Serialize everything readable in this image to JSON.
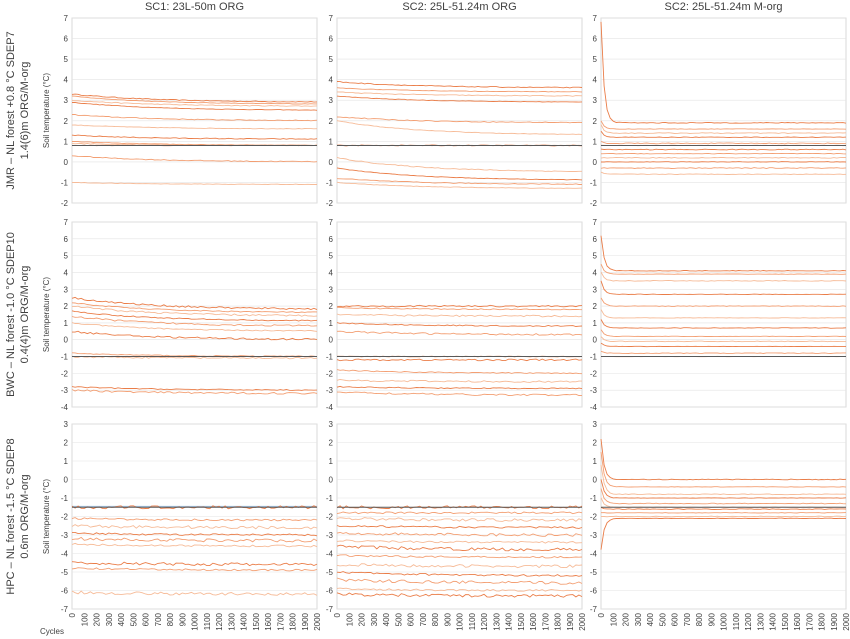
{
  "chart_data": {
    "type": "line",
    "column_titles": [
      "SC1: 23L-50m ORG",
      "SC2: 25L-51.24m ORG",
      "SC2: 25L-51.24m M-org"
    ],
    "x_axis": {
      "label": "Cycles",
      "ticks": [
        0,
        100,
        200,
        300,
        400,
        500,
        600,
        700,
        800,
        900,
        1000,
        1100,
        1200,
        1300,
        1400,
        1500,
        1600,
        1700,
        1800,
        1900,
        2000
      ],
      "range": [
        0,
        2000
      ]
    },
    "y_label": "Soil temperature (°C)",
    "grid": "horizontal",
    "colors": {
      "series": "#ec7c45",
      "reference": "#595959",
      "ice": "#9dc3e6",
      "grid": "#e3e3e3",
      "frame": "#d9d9d9"
    },
    "rows": [
      {
        "label": [
          "JMR – NL forest +0.8 °C SDEP7",
          "1.4(6)m ORG/M-org"
        ],
        "y_range": [
          -2,
          7
        ],
        "y_ticks": [
          -2,
          -1,
          0,
          1,
          2,
          3,
          4,
          5,
          6,
          7
        ],
        "reference": 0.8,
        "panels": [
          {
            "start": [
              3.3,
              3.2,
              3.0,
              2.9,
              2.3,
              1.8,
              1.3,
              1.0,
              0.9,
              0.8,
              0.3,
              -1.0
            ],
            "end": [
              2.9,
              2.8,
              2.7,
              2.5,
              2.0,
              1.6,
              1.1,
              0.8,
              0.8,
              0.8,
              0.0,
              -1.1
            ]
          },
          {
            "start": [
              3.9,
              3.6,
              3.4,
              3.2,
              2.2,
              2.0,
              0.8,
              0.8,
              0.2,
              -0.3,
              -0.8,
              -1.0
            ],
            "end": [
              3.6,
              3.4,
              3.2,
              2.9,
              1.9,
              1.3,
              0.8,
              0.8,
              -0.5,
              -0.9,
              -1.1,
              -1.3
            ]
          },
          {
            "start": [
              6.8,
              2.0,
              1.8,
              1.5,
              1.0,
              0.8,
              0.6,
              0.4,
              0.2,
              0.0,
              -0.3,
              -0.5
            ],
            "end": [
              1.9,
              1.6,
              1.4,
              1.2,
              0.9,
              0.8,
              0.6,
              0.4,
              0.2,
              0.0,
              -0.3,
              -0.6
            ]
          }
        ]
      },
      {
        "label": [
          "BWC – NL forest -1.0 °C SDEP10",
          "0.4(4)m ORG/M-org"
        ],
        "y_range": [
          -4,
          7
        ],
        "y_ticks": [
          -4,
          -3,
          -2,
          -1,
          0,
          1,
          2,
          3,
          4,
          5,
          6,
          7
        ],
        "reference": -1.0,
        "panels": [
          {
            "start": [
              2.5,
              2.2,
              2.0,
              1.7,
              1.4,
              1.0,
              0.5,
              -0.8,
              -1.0,
              -2.8,
              -3.0
            ],
            "end": [
              1.8,
              1.6,
              1.4,
              1.1,
              0.8,
              0.5,
              0.0,
              -1.0,
              -1.1,
              -3.0,
              -3.2
            ]
          },
          {
            "start": [
              2.0,
              1.9,
              1.5,
              1.0,
              0.5,
              -1.0,
              -1.2,
              -1.8,
              -2.4,
              -2.8,
              -3.1
            ],
            "end": [
              2.0,
              1.8,
              1.4,
              0.8,
              0.3,
              -1.0,
              -1.2,
              -2.0,
              -2.5,
              -2.9,
              -3.3
            ]
          },
          {
            "start": [
              6.2,
              4.5,
              4.0,
              3.5,
              2.5,
              1.8,
              1.2,
              0.6,
              0.2,
              -0.2,
              -0.7,
              -1.0
            ],
            "end": [
              4.1,
              3.9,
              3.5,
              2.7,
              2.0,
              1.3,
              0.7,
              0.2,
              -0.1,
              -0.4,
              -0.8,
              -1.0
            ]
          }
        ]
      },
      {
        "label": [
          "HPC – NL forest -1.5 °C SDEP8",
          "0.6m ORG/M-org"
        ],
        "y_range": [
          -7,
          3
        ],
        "y_ticks": [
          -7,
          -6,
          -5,
          -4,
          -3,
          -2,
          -1,
          0,
          1,
          2,
          3
        ],
        "reference": -1.5,
        "panels": [
          {
            "start": [
              -1.5,
              -2.1,
              -2.5,
              -2.9,
              -3.2,
              -3.5,
              -4.5,
              -4.8,
              -6.1
            ],
            "end": [
              -1.5,
              -2.2,
              -2.6,
              -3.0,
              -3.3,
              -3.6,
              -4.6,
              -4.9,
              -6.2
            ]
          },
          {
            "start": [
              -1.5,
              -1.8,
              -2.1,
              -2.5,
              -2.9,
              -3.3,
              -3.6,
              -4.1,
              -4.6,
              -5.0,
              -5.4,
              -5.9,
              -6.2
            ],
            "end": [
              -1.5,
              -1.8,
              -2.2,
              -2.6,
              -3.0,
              -3.4,
              -3.8,
              -4.2,
              -4.7,
              -5.2,
              -5.6,
              -6.0,
              -6.3
            ]
          },
          {
            "start": [
              2.2,
              1.5,
              0.8,
              0.0,
              -0.5,
              -1.0,
              -1.5,
              -1.8,
              -2.0,
              -3.8
            ],
            "end": [
              0.0,
              -0.4,
              -0.8,
              -1.0,
              -1.3,
              -1.5,
              -1.6,
              -1.8,
              -2.0,
              -2.1
            ]
          }
        ]
      }
    ]
  }
}
